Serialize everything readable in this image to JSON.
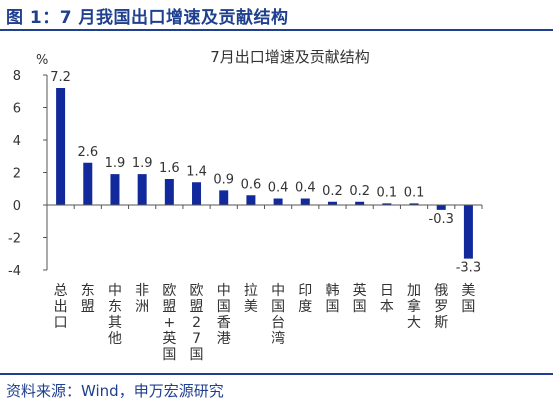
{
  "figure": {
    "title": "图 1：7 月我国出口增速及贡献结构",
    "source": "资料来源：Wind，申万宏源研究"
  },
  "colors": {
    "bar": "#12299b",
    "title": "#1f3f8f",
    "text": "#333333",
    "axis": "#555555"
  },
  "chart_data": {
    "type": "bar",
    "title": "7月出口增速及贡献结构",
    "xlabel": "",
    "ylabel": "%",
    "ylim": [
      -4,
      8
    ],
    "yticks": [
      -4,
      -2,
      0,
      2,
      4,
      6,
      8
    ],
    "grid": false,
    "categories": [
      "总出口",
      "东盟",
      "中东其他",
      "非洲",
      "欧盟+英国",
      "欧盟27国",
      "中国香港",
      "拉美",
      "中国台湾",
      "印度",
      "韩国",
      "英国",
      "日本",
      "加拿大",
      "俄罗斯",
      "美国"
    ],
    "values": [
      7.2,
      2.6,
      1.9,
      1.9,
      1.6,
      1.4,
      0.9,
      0.6,
      0.4,
      0.4,
      0.2,
      0.2,
      0.1,
      0.1,
      -0.3,
      -3.3
    ],
    "value_labels": [
      "7.2",
      "2.6",
      "1.9",
      "1.9",
      "1.6",
      "1.4",
      "0.9",
      "0.6",
      "0.4",
      "0.4",
      "0.2",
      "0.2",
      "0.1",
      "0.1",
      "-0.3",
      "-3.3"
    ]
  }
}
